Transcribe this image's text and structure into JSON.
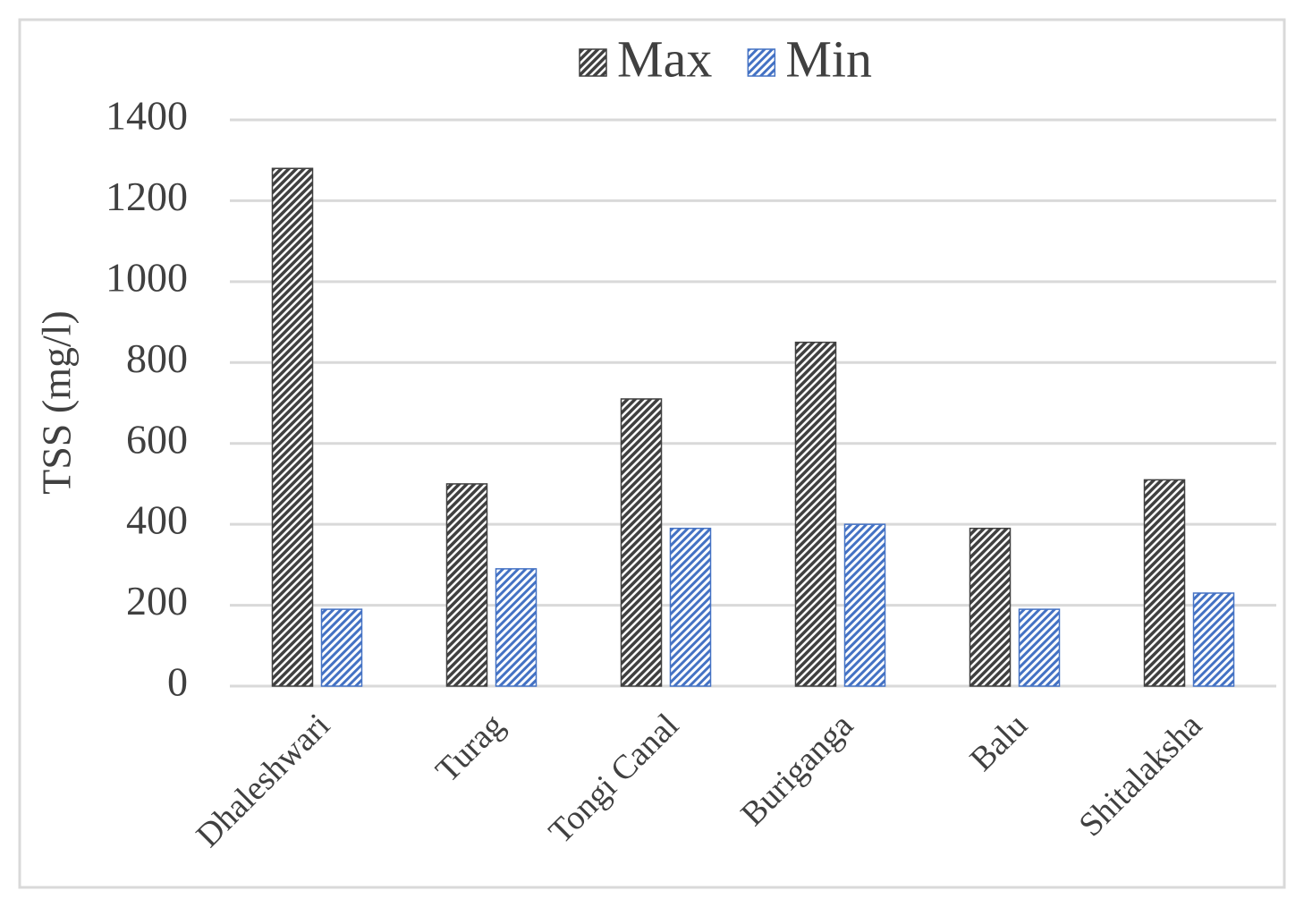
{
  "chart_data": {
    "type": "bar",
    "y_label": "TSS (mg/l)",
    "categories": [
      "Dhaleshwari",
      "Turag",
      "Tongi Canal",
      "Buriganga",
      "Balu",
      "Shitalaksha"
    ],
    "series": [
      {
        "name": "Max",
        "color": "#404040",
        "values": [
          1280,
          500,
          710,
          850,
          390,
          510
        ]
      },
      {
        "name": "Min",
        "color": "#4472c4",
        "values": [
          190,
          290,
          390,
          400,
          190,
          230
        ]
      }
    ],
    "ylim": [
      0,
      1400
    ],
    "yticks": [
      0,
      200,
      400,
      600,
      800,
      1000,
      1200,
      1400
    ],
    "grid": true,
    "legend": "top"
  }
}
